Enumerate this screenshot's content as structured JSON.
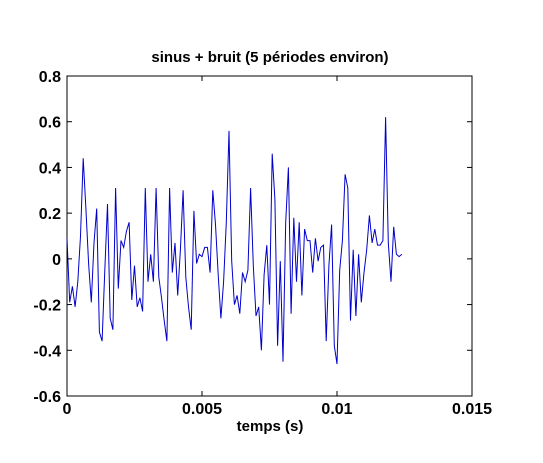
{
  "chart_data": {
    "type": "line",
    "title": "sinus + bruit (5 périodes environ)",
    "xlabel": "temps (s)",
    "ylabel": "",
    "xlim": [
      0,
      0.015
    ],
    "ylim": [
      -0.6,
      0.8
    ],
    "grid": false,
    "x_ticks": [
      0,
      0.005,
      0.01,
      0.015
    ],
    "x_tick_labels": [
      "0",
      "0.005",
      "0.01",
      "0.015"
    ],
    "y_ticks": [
      -0.6,
      -0.4,
      -0.2,
      0,
      0.2,
      0.4,
      0.6,
      0.8
    ],
    "y_tick_labels": [
      "-0.6",
      "-0.4",
      "-0.2",
      "0",
      "0.2",
      "0.4",
      "0.6",
      "0.8"
    ],
    "series": [
      {
        "color": "#0000cc",
        "x": [
          0,
          0.0001,
          0.0002,
          0.0003,
          0.0004,
          0.0005,
          0.0006,
          0.0007,
          0.0008,
          0.0009,
          0.001,
          0.0011,
          0.0012,
          0.0013,
          0.0014,
          0.0015,
          0.0016,
          0.0017,
          0.0018,
          0.0019,
          0.002,
          0.0021,
          0.0022,
          0.0023,
          0.0024,
          0.0025,
          0.0026,
          0.0027,
          0.0028,
          0.0029,
          0.003,
          0.0031,
          0.0032,
          0.0033,
          0.0034,
          0.0035,
          0.0036,
          0.0037,
          0.0038,
          0.0039,
          0.004,
          0.0041,
          0.0042,
          0.0043,
          0.0044,
          0.0045,
          0.0046,
          0.0047,
          0.0048,
          0.0049,
          0.005,
          0.0051,
          0.0052,
          0.0053,
          0.0054,
          0.0055,
          0.0056,
          0.0057,
          0.0058,
          0.0059,
          0.006,
          0.0061,
          0.0062,
          0.0063,
          0.0064,
          0.0065,
          0.0066,
          0.0067,
          0.0068,
          0.0069,
          0.007,
          0.0071,
          0.0072,
          0.0073,
          0.0074,
          0.0075,
          0.0076,
          0.0077,
          0.0078,
          0.0079,
          0.008,
          0.0081,
          0.0082,
          0.0083,
          0.0084,
          0.0085,
          0.0086,
          0.0087,
          0.0088,
          0.0089,
          0.009,
          0.0091,
          0.0092,
          0.0093,
          0.0094,
          0.0095,
          0.0096,
          0.0097,
          0.0098,
          0.0099,
          0.01,
          0.0101,
          0.0102,
          0.0103,
          0.0104,
          0.0105,
          0.0106,
          0.0107,
          0.0108,
          0.0109,
          0.011,
          0.0111,
          0.0112,
          0.0113,
          0.0114,
          0.0115,
          0.0116,
          0.0117,
          0.0118,
          0.0119,
          0.012,
          0.0121,
          0.0122,
          0.0123,
          0.0124
        ],
        "y": [
          0.09,
          -0.19,
          -0.12,
          -0.21,
          -0.1,
          0.1,
          0.44,
          0.22,
          -0.02,
          -0.19,
          0.07,
          0.22,
          -0.32,
          -0.36,
          -0.05,
          0.24,
          -0.26,
          -0.31,
          0.31,
          -0.13,
          0.08,
          0.05,
          0.12,
          0.16,
          -0.18,
          -0.03,
          -0.21,
          -0.17,
          -0.23,
          0.31,
          -0.1,
          0.02,
          -0.1,
          0.31,
          -0.08,
          -0.17,
          -0.27,
          -0.36,
          0.31,
          -0.06,
          0.07,
          -0.16,
          0.04,
          0.3,
          -0.08,
          -0.21,
          -0.31,
          0.21,
          -0.02,
          0.02,
          0.01,
          0.05,
          0.05,
          -0.06,
          0.3,
          0.15,
          -0.07,
          -0.26,
          -0.1,
          0.16,
          0.56,
          -0.01,
          -0.2,
          -0.16,
          -0.24,
          -0.06,
          -0.1,
          -0.05,
          0.31,
          -0.03,
          -0.25,
          -0.21,
          -0.4,
          -0.07,
          0.06,
          -0.2,
          0.46,
          0.26,
          -0.38,
          -0.01,
          -0.45,
          0.16,
          0.4,
          -0.24,
          0.18,
          -0.1,
          0.16,
          -0.16,
          0.13,
          0.08,
          0.08,
          -0.06,
          0.09,
          -0.01,
          0.05,
          0.06,
          -0.36,
          -0.03,
          0.15,
          -0.38,
          -0.46,
          -0.05,
          0.08,
          0.37,
          0.31,
          -0.27,
          0.04,
          -0.25,
          0.02,
          -0.19,
          -0.06,
          0.04,
          0.19,
          0.07,
          0.13,
          0.06,
          0.06,
          0.08,
          0.62,
          0.07,
          -0.1,
          0.14,
          0.02,
          0.01,
          0.02
        ]
      }
    ]
  }
}
